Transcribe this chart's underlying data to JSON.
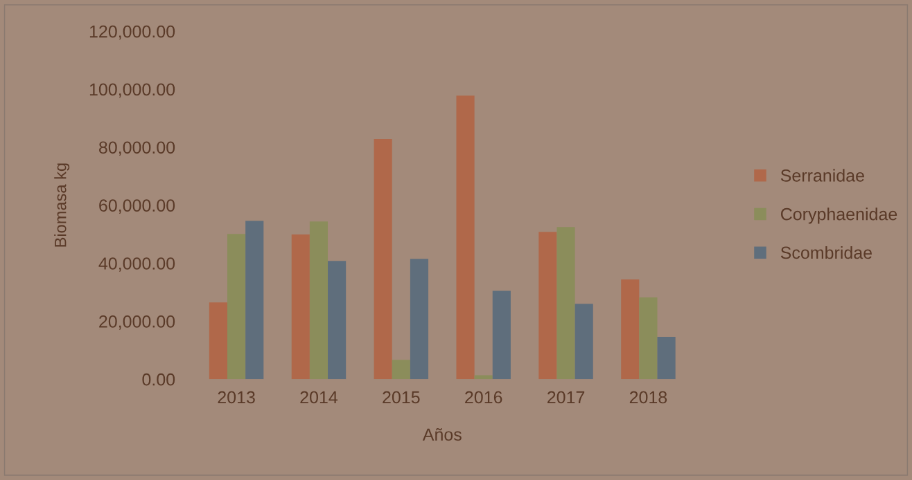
{
  "chart_data": {
    "type": "bar",
    "xlabel": "Años",
    "ylabel": "Biomasa kg",
    "categories": [
      "2013",
      "2014",
      "2015",
      "2016",
      "2017",
      "2018"
    ],
    "series": [
      {
        "name": "Serranidae",
        "color": "#b0684a",
        "values": [
          26500,
          49900,
          82800,
          97800,
          50800,
          34400
        ]
      },
      {
        "name": "Coryphaenidae",
        "color": "#8b8d5b",
        "values": [
          50100,
          54400,
          6700,
          1400,
          52500,
          28200
        ]
      },
      {
        "name": "Scombridae",
        "color": "#5f6e7c",
        "values": [
          54600,
          40800,
          41500,
          30500,
          26000,
          14600
        ]
      }
    ],
    "ylim": [
      0,
      120000
    ],
    "yticks": [
      {
        "value": 0,
        "label": "0.00"
      },
      {
        "value": 20000,
        "label": "20,000.00"
      },
      {
        "value": 40000,
        "label": "40,000.00"
      },
      {
        "value": 60000,
        "label": "60,000.00"
      },
      {
        "value": 80000,
        "label": "80,000.00"
      },
      {
        "value": 100000,
        "label": "100,000.00"
      },
      {
        "value": 120000,
        "label": "120,000.00"
      }
    ],
    "grid": false,
    "legend": "right"
  }
}
